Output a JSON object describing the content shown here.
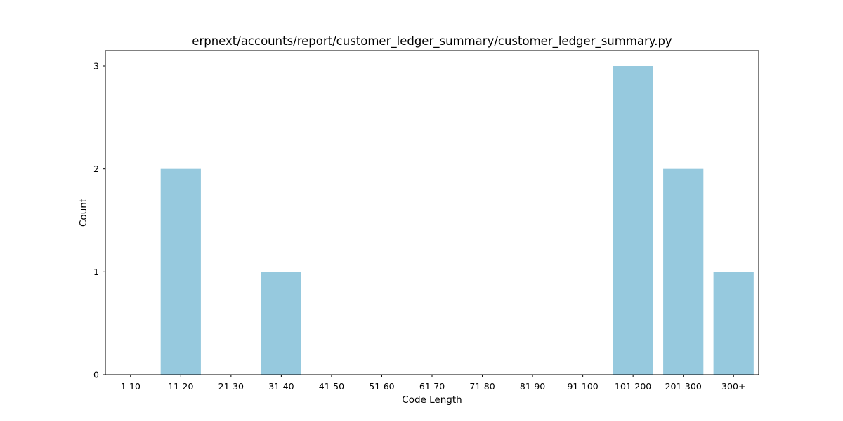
{
  "chart_data": {
    "type": "bar",
    "title": "erpnext/accounts/report/customer_ledger_summary/customer_ledger_summary.py",
    "xlabel": "Code Length",
    "ylabel": "Count",
    "categories": [
      "1-10",
      "11-20",
      "21-30",
      "31-40",
      "41-50",
      "51-60",
      "61-70",
      "71-80",
      "81-90",
      "91-100",
      "101-200",
      "201-300",
      "300+"
    ],
    "values": [
      0,
      2,
      0,
      1,
      0,
      0,
      0,
      0,
      0,
      0,
      3,
      2,
      1
    ],
    "ylim": [
      0,
      3.15
    ],
    "yticks": [
      0,
      1,
      2,
      3
    ],
    "bar_color": "#96c9de",
    "grid": false,
    "legend": "none"
  }
}
